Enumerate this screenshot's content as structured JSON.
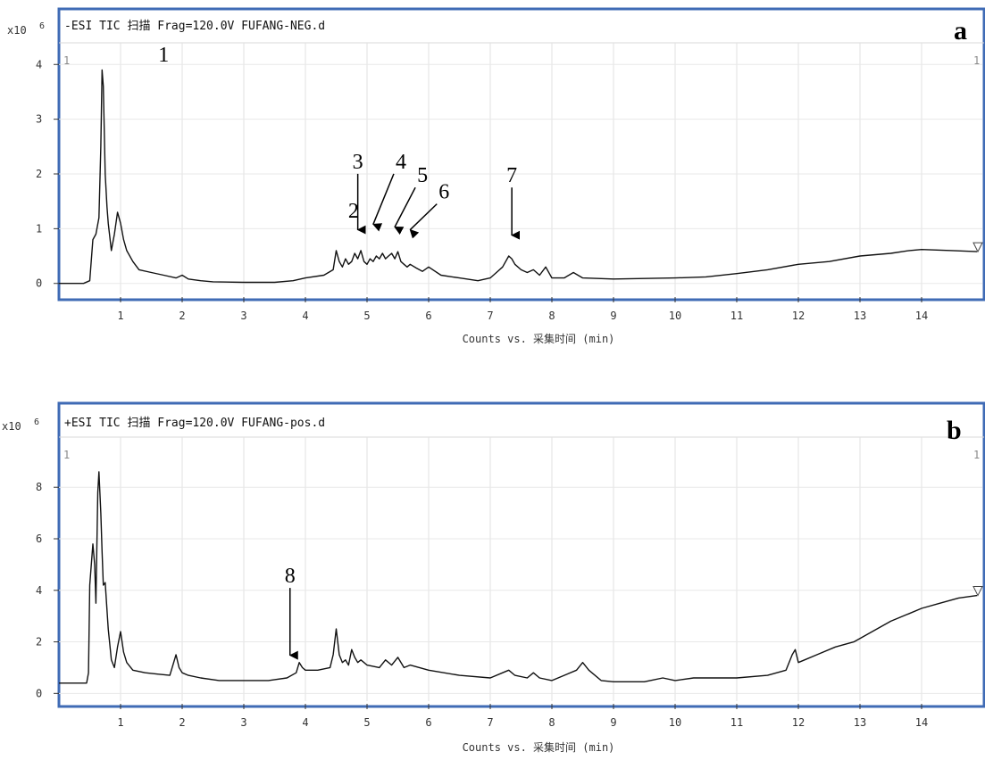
{
  "chart_data": [
    {
      "type": "line",
      "panel_label": "a",
      "title": "-ESI TIC 扫描 Frag=120.0V FUFANG-NEG.d",
      "y_scale_label": "x10",
      "y_scale_exp": "6",
      "xlabel": "Counts vs. 采集时间 (min)",
      "xlim": [
        0,
        14.9
      ],
      "ylim": [
        -0.2,
        4.2
      ],
      "x_ticks": [
        1,
        2,
        3,
        4,
        5,
        6,
        7,
        8,
        9,
        10,
        11,
        12,
        13,
        14
      ],
      "y_ticks": [
        0,
        1,
        2,
        3,
        4
      ],
      "cursor_label": "1",
      "grid": true,
      "series": [
        {
          "x": [
            0.0,
            0.4,
            0.5,
            0.55,
            0.6,
            0.65,
            0.68,
            0.7,
            0.72,
            0.75,
            0.78,
            0.8,
            0.85,
            0.9,
            0.95,
            1.0,
            1.05,
            1.1,
            1.2,
            1.3,
            1.5,
            1.7,
            1.9,
            2.0,
            2.1,
            2.3,
            2.5,
            3.0,
            3.5,
            3.8,
            4.0,
            4.3,
            4.45,
            4.5,
            4.55,
            4.6,
            4.65,
            4.7,
            4.75,
            4.8,
            4.85,
            4.9,
            4.95,
            5.0,
            5.05,
            5.1,
            5.15,
            5.2,
            5.25,
            5.3,
            5.35,
            5.4,
            5.45,
            5.5,
            5.55,
            5.6,
            5.65,
            5.7,
            5.8,
            5.9,
            6.0,
            6.2,
            6.5,
            6.8,
            7.0,
            7.1,
            7.2,
            7.3,
            7.35,
            7.4,
            7.5,
            7.6,
            7.7,
            7.8,
            7.9,
            8.0,
            8.2,
            8.35,
            8.5,
            9.0,
            10.0,
            10.5,
            11.0,
            11.5,
            12.0,
            12.5,
            13.0,
            13.5,
            13.8,
            14.0,
            14.5,
            14.9
          ],
          "y": [
            0.0,
            0.0,
            0.05,
            0.8,
            0.9,
            1.2,
            2.5,
            3.9,
            3.6,
            2.0,
            1.4,
            1.1,
            0.6,
            0.9,
            1.3,
            1.1,
            0.8,
            0.6,
            0.4,
            0.25,
            0.2,
            0.15,
            0.1,
            0.15,
            0.08,
            0.05,
            0.03,
            0.02,
            0.02,
            0.05,
            0.1,
            0.15,
            0.25,
            0.6,
            0.4,
            0.3,
            0.45,
            0.35,
            0.4,
            0.55,
            0.45,
            0.6,
            0.4,
            0.35,
            0.45,
            0.4,
            0.5,
            0.45,
            0.55,
            0.45,
            0.5,
            0.55,
            0.45,
            0.58,
            0.4,
            0.35,
            0.3,
            0.35,
            0.28,
            0.22,
            0.3,
            0.15,
            0.1,
            0.05,
            0.1,
            0.2,
            0.3,
            0.5,
            0.45,
            0.35,
            0.25,
            0.2,
            0.25,
            0.15,
            0.3,
            0.1,
            0.1,
            0.2,
            0.1,
            0.08,
            0.1,
            0.12,
            0.18,
            0.25,
            0.35,
            0.4,
            0.5,
            0.55,
            0.6,
            0.62,
            0.6,
            0.58
          ]
        }
      ],
      "annotations": [
        {
          "label": "1",
          "x": 1.7,
          "y": 4.05,
          "arrow": false
        },
        {
          "label": "2",
          "x": 4.78,
          "y": 1.2,
          "arrow": false
        },
        {
          "label": "3",
          "x": 4.85,
          "y": 2.1,
          "arrow": true,
          "arrow_to_y": 0.85,
          "arrow_to_x": 4.85
        },
        {
          "label": "4",
          "x": 5.55,
          "y": 2.1,
          "arrow": true,
          "arrow_to_x": 5.1,
          "arrow_to_y": 0.95
        },
        {
          "label": "5",
          "x": 5.9,
          "y": 1.85,
          "arrow": true,
          "arrow_to_x": 5.45,
          "arrow_to_y": 0.9
        },
        {
          "label": "6",
          "x": 6.25,
          "y": 1.55,
          "arrow": true,
          "arrow_to_x": 5.7,
          "arrow_to_y": 0.85
        },
        {
          "label": "7",
          "x": 7.35,
          "y": 1.85,
          "arrow": true,
          "arrow_to_y": 0.75,
          "arrow_to_x": 7.35
        }
      ]
    },
    {
      "type": "line",
      "panel_label": "b",
      "title": "+ESI TIC 扫描 Frag=120.0V FUFANG-pos.d",
      "y_scale_label": "x10",
      "y_scale_exp": "6",
      "xlabel": "Counts vs. 采集时间 (min)",
      "xlim": [
        0,
        14.9
      ],
      "ylim": [
        -0.3,
        9.6
      ],
      "x_ticks": [
        1,
        2,
        3,
        4,
        5,
        6,
        7,
        8,
        9,
        10,
        11,
        12,
        13,
        14
      ],
      "y_ticks": [
        0,
        2,
        4,
        6,
        8
      ],
      "cursor_label": "1",
      "grid": true,
      "series": [
        {
          "x": [
            0.0,
            0.45,
            0.48,
            0.5,
            0.55,
            0.58,
            0.6,
            0.63,
            0.65,
            0.68,
            0.7,
            0.72,
            0.75,
            0.8,
            0.85,
            0.9,
            0.95,
            1.0,
            1.05,
            1.1,
            1.2,
            1.4,
            1.6,
            1.8,
            1.9,
            1.95,
            2.0,
            2.1,
            2.3,
            2.6,
            3.0,
            3.4,
            3.7,
            3.85,
            3.9,
            3.95,
            4.0,
            4.2,
            4.4,
            4.45,
            4.5,
            4.55,
            4.6,
            4.65,
            4.7,
            4.75,
            4.8,
            4.85,
            4.9,
            4.95,
            5.0,
            5.2,
            5.3,
            5.4,
            5.5,
            5.6,
            5.7,
            6.0,
            6.5,
            7.0,
            7.2,
            7.3,
            7.4,
            7.6,
            7.7,
            7.8,
            8.0,
            8.2,
            8.4,
            8.5,
            8.6,
            8.8,
            9.0,
            9.5,
            9.8,
            10.0,
            10.3,
            11.0,
            11.5,
            11.8,
            11.9,
            11.95,
            12.0,
            12.1,
            12.3,
            12.6,
            12.9,
            13.2,
            13.5,
            13.8,
            14.0,
            14.3,
            14.6,
            14.9
          ],
          "y": [
            0.4,
            0.4,
            0.8,
            4.2,
            5.8,
            5.0,
            3.5,
            7.8,
            8.6,
            7.0,
            5.5,
            4.2,
            4.3,
            2.5,
            1.3,
            1.0,
            1.8,
            2.4,
            1.6,
            1.2,
            0.9,
            0.8,
            0.75,
            0.7,
            1.5,
            1.0,
            0.8,
            0.7,
            0.6,
            0.5,
            0.5,
            0.5,
            0.6,
            0.8,
            1.2,
            1.0,
            0.9,
            0.9,
            1.0,
            1.5,
            2.5,
            1.5,
            1.2,
            1.3,
            1.1,
            1.7,
            1.4,
            1.2,
            1.3,
            1.2,
            1.1,
            1.0,
            1.3,
            1.1,
            1.4,
            1.0,
            1.1,
            0.9,
            0.7,
            0.6,
            0.8,
            0.9,
            0.7,
            0.6,
            0.8,
            0.6,
            0.5,
            0.7,
            0.9,
            1.2,
            0.9,
            0.5,
            0.45,
            0.45,
            0.6,
            0.5,
            0.6,
            0.6,
            0.7,
            0.9,
            1.5,
            1.7,
            1.2,
            1.3,
            1.5,
            1.8,
            2.0,
            2.4,
            2.8,
            3.1,
            3.3,
            3.5,
            3.7,
            3.8
          ]
        }
      ],
      "annotations": [
        {
          "label": "8",
          "x": 3.75,
          "y": 4.3,
          "arrow": true,
          "arrow_to_y": 1.2,
          "arrow_to_x": 3.75
        }
      ]
    }
  ]
}
